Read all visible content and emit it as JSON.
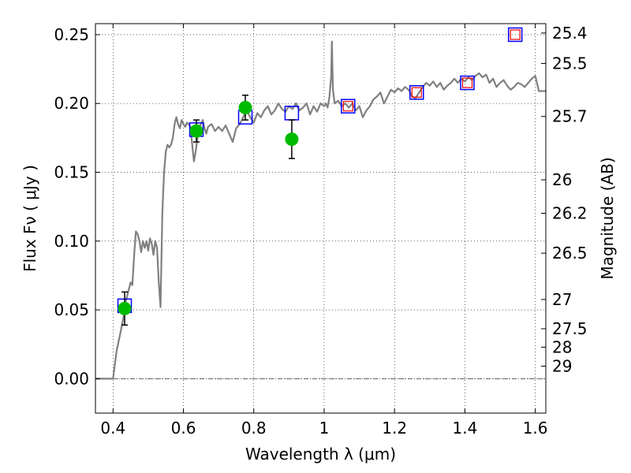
{
  "chart_data": {
    "type": "scatter",
    "xlabel": "Wavelength  λ (μm)",
    "ylabel": "Flux  Fν  ( μJy )",
    "ylabel_right": "Magnitude (AB)",
    "xlim": [
      0.35,
      1.63
    ],
    "ylim": [
      -0.025,
      0.258
    ],
    "grid": true,
    "x_ticks": [
      {
        "v": 0.4,
        "label": "0.4"
      },
      {
        "v": 0.6,
        "label": "0.6"
      },
      {
        "v": 0.8,
        "label": "0.8"
      },
      {
        "v": 1.0,
        "label": "1"
      },
      {
        "v": 1.2,
        "label": "1.2"
      },
      {
        "v": 1.4,
        "label": "1.4"
      },
      {
        "v": 1.6,
        "label": "1.6"
      }
    ],
    "y_ticks": [
      {
        "v": 0.0,
        "label": "0.00"
      },
      {
        "v": 0.05,
        "label": "0.05"
      },
      {
        "v": 0.1,
        "label": "0.10"
      },
      {
        "v": 0.15,
        "label": "0.15"
      },
      {
        "v": 0.2,
        "label": "0.20"
      },
      {
        "v": 0.25,
        "label": "0.25"
      }
    ],
    "right_ticks": [
      {
        "label": "25.4",
        "mag": 25.4
      },
      {
        "label": "25.5",
        "mag": 25.5
      },
      {
        "label": "25.7",
        "mag": 25.7
      },
      {
        "label": "26",
        "mag": 26.0
      },
      {
        "label": "26.2",
        "mag": 26.2
      },
      {
        "label": "26.5",
        "mag": 26.5
      },
      {
        "label": "27",
        "mag": 27.0
      },
      {
        "label": "27.5",
        "mag": 27.5
      },
      {
        "label": "28",
        "mag": 28.0
      },
      {
        "label": "29",
        "mag": 29.0
      }
    ],
    "series": [
      {
        "kind": "spectrum",
        "color": "#808080",
        "points": [
          [
            0.35,
            0.0
          ],
          [
            0.39,
            0.0
          ],
          [
            0.4,
            0.0
          ],
          [
            0.41,
            0.02
          ],
          [
            0.42,
            0.032
          ],
          [
            0.43,
            0.045
          ],
          [
            0.435,
            0.055
          ],
          [
            0.44,
            0.06
          ],
          [
            0.445,
            0.065
          ],
          [
            0.45,
            0.07
          ],
          [
            0.455,
            0.068
          ],
          [
            0.46,
            0.09
          ],
          [
            0.465,
            0.107
          ],
          [
            0.47,
            0.105
          ],
          [
            0.475,
            0.1
          ],
          [
            0.48,
            0.092
          ],
          [
            0.485,
            0.1
          ],
          [
            0.49,
            0.095
          ],
          [
            0.495,
            0.1
          ],
          [
            0.5,
            0.093
          ],
          [
            0.505,
            0.102
          ],
          [
            0.51,
            0.098
          ],
          [
            0.515,
            0.09
          ],
          [
            0.52,
            0.1
          ],
          [
            0.525,
            0.095
          ],
          [
            0.53,
            0.07
          ],
          [
            0.535,
            0.052
          ],
          [
            0.54,
            0.12
          ],
          [
            0.545,
            0.15
          ],
          [
            0.55,
            0.165
          ],
          [
            0.555,
            0.17
          ],
          [
            0.56,
            0.168
          ],
          [
            0.565,
            0.17
          ],
          [
            0.57,
            0.175
          ],
          [
            0.575,
            0.185
          ],
          [
            0.58,
            0.19
          ],
          [
            0.585,
            0.185
          ],
          [
            0.59,
            0.182
          ],
          [
            0.595,
            0.188
          ],
          [
            0.6,
            0.185
          ],
          [
            0.605,
            0.183
          ],
          [
            0.61,
            0.186
          ],
          [
            0.615,
            0.185
          ],
          [
            0.62,
            0.183
          ],
          [
            0.625,
            0.17
          ],
          [
            0.63,
            0.158
          ],
          [
            0.635,
            0.165
          ],
          [
            0.64,
            0.175
          ],
          [
            0.645,
            0.183
          ],
          [
            0.65,
            0.185
          ],
          [
            0.655,
            0.188
          ],
          [
            0.66,
            0.182
          ],
          [
            0.665,
            0.178
          ],
          [
            0.67,
            0.183
          ],
          [
            0.68,
            0.185
          ],
          [
            0.69,
            0.18
          ],
          [
            0.7,
            0.183
          ],
          [
            0.71,
            0.18
          ],
          [
            0.72,
            0.184
          ],
          [
            0.73,
            0.178
          ],
          [
            0.74,
            0.172
          ],
          [
            0.75,
            0.182
          ],
          [
            0.76,
            0.185
          ],
          [
            0.77,
            0.19
          ],
          [
            0.78,
            0.195
          ],
          [
            0.79,
            0.19
          ],
          [
            0.8,
            0.186
          ],
          [
            0.81,
            0.193
          ],
          [
            0.82,
            0.19
          ],
          [
            0.83,
            0.195
          ],
          [
            0.84,
            0.198
          ],
          [
            0.85,
            0.192
          ],
          [
            0.86,
            0.195
          ],
          [
            0.87,
            0.2
          ],
          [
            0.88,
            0.196
          ],
          [
            0.89,
            0.194
          ],
          [
            0.9,
            0.198
          ],
          [
            0.91,
            0.196
          ],
          [
            0.92,
            0.2
          ],
          [
            0.93,
            0.195
          ],
          [
            0.94,
            0.197
          ],
          [
            0.95,
            0.2
          ],
          [
            0.96,
            0.192
          ],
          [
            0.97,
            0.198
          ],
          [
            0.98,
            0.194
          ],
          [
            0.99,
            0.2
          ],
          [
            1.0,
            0.198
          ],
          [
            1.005,
            0.2
          ],
          [
            1.01,
            0.197
          ],
          [
            1.015,
            0.205
          ],
          [
            1.02,
            0.22
          ],
          [
            1.022,
            0.245
          ],
          [
            1.025,
            0.21
          ],
          [
            1.03,
            0.2
          ],
          [
            1.04,
            0.202
          ],
          [
            1.05,
            0.198
          ],
          [
            1.06,
            0.2
          ],
          [
            1.07,
            0.197
          ],
          [
            1.08,
            0.2
          ],
          [
            1.09,
            0.195
          ],
          [
            1.1,
            0.198
          ],
          [
            1.11,
            0.19
          ],
          [
            1.12,
            0.195
          ],
          [
            1.13,
            0.198
          ],
          [
            1.14,
            0.203
          ],
          [
            1.15,
            0.205
          ],
          [
            1.16,
            0.208
          ],
          [
            1.17,
            0.2
          ],
          [
            1.18,
            0.205
          ],
          [
            1.19,
            0.21
          ],
          [
            1.2,
            0.208
          ],
          [
            1.21,
            0.211
          ],
          [
            1.22,
            0.209
          ],
          [
            1.23,
            0.212
          ],
          [
            1.24,
            0.21
          ],
          [
            1.25,
            0.205
          ],
          [
            1.26,
            0.204
          ],
          [
            1.27,
            0.208
          ],
          [
            1.28,
            0.212
          ],
          [
            1.29,
            0.215
          ],
          [
            1.3,
            0.213
          ],
          [
            1.31,
            0.216
          ],
          [
            1.32,
            0.212
          ],
          [
            1.33,
            0.215
          ],
          [
            1.34,
            0.21
          ],
          [
            1.35,
            0.213
          ],
          [
            1.36,
            0.215
          ],
          [
            1.37,
            0.218
          ],
          [
            1.38,
            0.215
          ],
          [
            1.39,
            0.218
          ],
          [
            1.4,
            0.216
          ],
          [
            1.41,
            0.219
          ],
          [
            1.42,
            0.217
          ],
          [
            1.43,
            0.22
          ],
          [
            1.44,
            0.222
          ],
          [
            1.45,
            0.219
          ],
          [
            1.46,
            0.221
          ],
          [
            1.47,
            0.215
          ],
          [
            1.48,
            0.218
          ],
          [
            1.49,
            0.212
          ],
          [
            1.5,
            0.215
          ],
          [
            1.51,
            0.217
          ],
          [
            1.52,
            0.213
          ],
          [
            1.53,
            0.21
          ],
          [
            1.54,
            0.212
          ],
          [
            1.55,
            0.215
          ],
          [
            1.56,
            0.214
          ],
          [
            1.57,
            0.212
          ],
          [
            1.58,
            0.215
          ],
          [
            1.59,
            0.218
          ],
          [
            1.6,
            0.22
          ],
          [
            1.605,
            0.215
          ],
          [
            1.61,
            0.209
          ],
          [
            1.63,
            0.209
          ]
        ]
      },
      {
        "kind": "model-squares",
        "color": "#0000ff",
        "points": [
          [
            0.433,
            0.053
          ],
          [
            0.637,
            0.181
          ],
          [
            0.776,
            0.19
          ],
          [
            0.908,
            0.193
          ],
          [
            1.068,
            0.198
          ],
          [
            1.263,
            0.208
          ],
          [
            1.407,
            0.215
          ],
          [
            1.543,
            0.25
          ]
        ]
      },
      {
        "kind": "red-squares",
        "color": "#ff0000",
        "points": [
          [
            1.068,
            0.198
          ],
          [
            1.263,
            0.208
          ],
          [
            1.407,
            0.215
          ],
          [
            1.543,
            0.25
          ]
        ]
      },
      {
        "kind": "observed",
        "color": "#00bb00",
        "points": [
          {
            "x": 0.433,
            "y": 0.051,
            "err": 0.012
          },
          {
            "x": 0.637,
            "y": 0.18,
            "err": 0.008
          },
          {
            "x": 0.776,
            "y": 0.197,
            "err": 0.009
          },
          {
            "x": 0.908,
            "y": 0.174,
            "err": 0.014
          }
        ]
      }
    ]
  }
}
